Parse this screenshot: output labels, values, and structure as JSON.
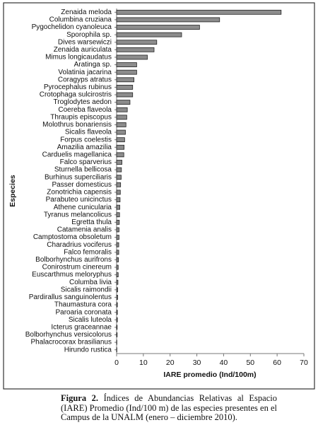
{
  "chart_data": {
    "type": "barh",
    "xlabel": "IARE promedio (Ind/100m)",
    "ylabel": "Especies",
    "categories": [
      "Zenaida meloda",
      "Columbina cruziana",
      "Pygochelidon cyanoleuca",
      "Sporophila sp.",
      "Dives warsewiczi",
      "Zenaida auriculata",
      "Mimus longicaudatus",
      "Aratinga sp.",
      "Volatinia jacarina",
      "Coragyps atratus",
      "Pyrocephalus rubinus",
      "Crotophaga sulcirostris",
      "Troglodytes aedon",
      "Coereba flaveola",
      "Thraupis episcopus",
      "Molothrus bonariensis",
      "Sicalis flaveola",
      "Forpus coelestis",
      "Amazilia amazilia",
      "Carduelis magellanica",
      "Falco sparverius",
      "Sturnella bellicosa",
      "Burhinus superciliaris",
      "Passer domesticus",
      "Zonotrichia capensis",
      "Parabuteo unicinctus",
      "Athene cunicularia",
      "Tyranus melancolicus",
      "Egretta thula",
      "Catamenia analis",
      "Camptostoma obsoletum",
      "Charadrius vociferus",
      "Falco femoralis",
      "Bolborhynchus aurifrons",
      "Conirostrum cinereum",
      "Euscarthmus meloryphus",
      "Columba livia",
      "Sicalis raimondii",
      "Pardirallus sanguinolentus",
      "Thaumastura cora",
      "Paroaria coronata",
      "Sicalis luteola",
      "Icterus graceannae",
      "Bolborhynchus versicolorus",
      "Phalacrocorax brasilianus",
      "Hirundo rustica"
    ],
    "values": [
      61.5,
      38.5,
      31,
      24.3,
      15,
      14,
      11.5,
      7.5,
      7.5,
      6.5,
      6,
      6,
      5,
      4,
      3.8,
      3.5,
      3.3,
      3,
      2.8,
      2.7,
      2,
      1.8,
      1.7,
      1.5,
      1.4,
      1.3,
      1.2,
      1.1,
      1,
      0.9,
      0.9,
      0.8,
      0.8,
      0.7,
      0.6,
      0.6,
      0.5,
      0.4,
      0.4,
      0.3,
      0.3,
      0.3,
      0.2,
      0.2,
      0.1,
      0.1
    ],
    "color": "#8c8c8c",
    "xlim": [
      0,
      70
    ],
    "xticks": [
      0,
      10,
      20,
      30,
      40,
      50,
      60,
      70
    ]
  },
  "caption": {
    "label": "Figura 2.",
    "text": "Índices de Abundancias Relativas al Espacio (IARE) Promedio (Ind/100 m) de las especies presentes en el Campus de la UNALM (enero – diciembre 2010)."
  }
}
